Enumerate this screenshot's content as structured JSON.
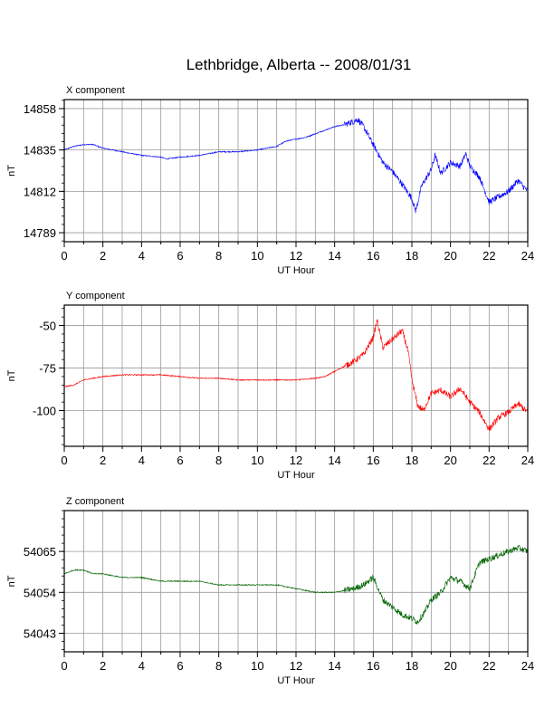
{
  "title": "Lethbridge, Alberta -- 2008/01/31",
  "chart_data": [
    {
      "type": "line",
      "panel_label": "X component",
      "xlabel": "UT Hour",
      "ylabel": "nT",
      "xlim": [
        0,
        24
      ],
      "x_ticks": [
        0,
        2,
        4,
        6,
        8,
        10,
        12,
        14,
        16,
        18,
        20,
        22,
        24
      ],
      "ylim": [
        14784,
        14863
      ],
      "y_ticks": [
        14789,
        14812,
        14835,
        14858
      ],
      "grid": true,
      "color": "#0000ff",
      "series": [
        {
          "x": [
            0,
            0.5,
            1,
            1.5,
            2,
            3,
            4,
            5,
            5.3,
            6,
            7,
            8,
            9,
            10,
            11,
            11.5,
            12,
            12.5,
            13,
            13.5,
            14,
            14.5,
            15,
            15.2,
            15.5,
            16,
            16.5,
            17,
            17.5,
            18,
            18.2,
            18.5,
            19,
            19.2,
            19.5,
            20,
            20.5,
            20.8,
            21,
            21.5,
            22,
            22.5,
            23,
            23.5,
            24
          ],
          "y": [
            14835,
            14837,
            14838,
            14838,
            14836,
            14834,
            14832,
            14831,
            14830,
            14831,
            14832,
            14834,
            14834,
            14835,
            14837,
            14840,
            14841,
            14842,
            14844,
            14846,
            14848,
            14849,
            14851,
            14852,
            14848,
            14838,
            14828,
            14823,
            14816,
            14808,
            14801,
            14815,
            14824,
            14832,
            14822,
            14828,
            14826,
            14833,
            14826,
            14820,
            14806,
            14809,
            14812,
            14818,
            14812
          ]
        }
      ]
    },
    {
      "type": "line",
      "panel_label": "Y component",
      "xlabel": "UT Hour",
      "ylabel": "nT",
      "xlim": [
        0,
        24
      ],
      "x_ticks": [
        0,
        2,
        4,
        6,
        8,
        10,
        12,
        14,
        16,
        18,
        20,
        22,
        24
      ],
      "ylim": [
        -121,
        -38
      ],
      "y_ticks": [
        -50,
        -75,
        -100
      ],
      "grid": true,
      "color": "#ff0000",
      "series": [
        {
          "x": [
            0,
            0.5,
            1,
            1.5,
            2,
            3,
            4,
            5,
            6,
            7,
            8,
            9,
            10,
            11,
            11.5,
            12,
            13,
            13.5,
            14,
            14.5,
            15,
            15.5,
            16,
            16.2,
            16.5,
            17,
            17.5,
            17.8,
            18,
            18.3,
            18.6,
            19,
            19.5,
            20,
            20.5,
            21,
            21.5,
            22,
            22.5,
            23,
            23.5,
            24
          ],
          "y": [
            -86,
            -85,
            -82,
            -81,
            -80,
            -79,
            -79,
            -79,
            -80,
            -81,
            -81,
            -82,
            -82,
            -82,
            -82,
            -82,
            -81,
            -80,
            -77,
            -74,
            -71,
            -67,
            -57,
            -47,
            -63,
            -58,
            -53,
            -65,
            -82,
            -97,
            -100,
            -90,
            -88,
            -92,
            -87,
            -95,
            -101,
            -111,
            -104,
            -101,
            -96,
            -101
          ]
        }
      ]
    },
    {
      "type": "line",
      "panel_label": "Z component",
      "xlabel": "UT Hour",
      "ylabel": "nT",
      "xlim": [
        0,
        24
      ],
      "x_ticks": [
        0,
        2,
        4,
        6,
        8,
        10,
        12,
        14,
        16,
        18,
        20,
        22,
        24
      ],
      "ylim": [
        54038,
        54076
      ],
      "y_ticks": [
        54043,
        54054,
        54065
      ],
      "grid": true,
      "color": "#006400",
      "series": [
        {
          "x": [
            0,
            0.5,
            1,
            1.5,
            2,
            3,
            4,
            5,
            6,
            7,
            8,
            9,
            10,
            11,
            12,
            13,
            14,
            15,
            15.5,
            16,
            16.5,
            17,
            17.5,
            18,
            18.3,
            18.7,
            19,
            19.5,
            20,
            20.5,
            21,
            21.5,
            22,
            22.5,
            23,
            23.5,
            24
          ],
          "y": [
            54059,
            54060,
            54060,
            54059,
            54059,
            54058,
            54058,
            54057,
            54057,
            54057,
            54056,
            54056,
            54056,
            54056,
            54055,
            54054,
            54054,
            54055,
            54056,
            54058,
            54052,
            54050,
            54048,
            54047,
            54046,
            54049,
            54052,
            54054,
            54058,
            54057,
            54055,
            54062,
            54063,
            54064,
            54065,
            54066,
            54065
          ]
        }
      ]
    }
  ]
}
